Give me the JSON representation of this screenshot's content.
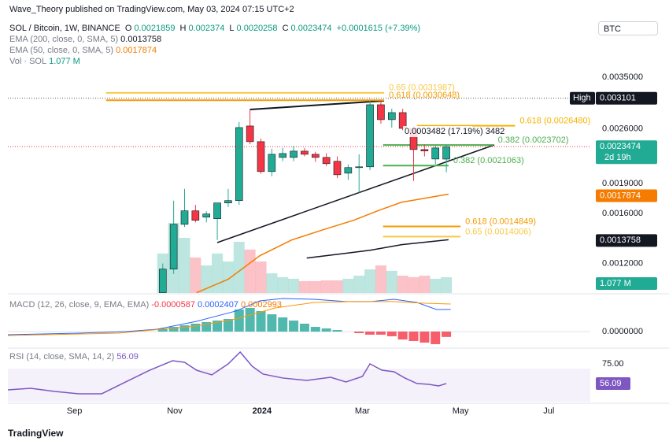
{
  "header": {
    "published": "Wave_Theory published on TradingView.com, May 03, 2024 07:15 UTC+2",
    "ohlc_labels": [
      "O",
      "H",
      "L",
      "C"
    ],
    "change": "+0.0001615 (+7.39%)",
    "currency": "BTC",
    "countdown": "2d 19h",
    "high_label": "High",
    "footer": "TradingView"
  },
  "chart_data": [
    {
      "type": "candlestick",
      "title": "SOL / Bitcoin, 1W, BINANCE",
      "log_scale": true,
      "grid": false,
      "xlim": [
        -14.2,
        39.2
      ],
      "xticks": [
        {
          "value": -8.1,
          "label": "Sep"
        },
        {
          "value": 1.1,
          "label": "Nov"
        },
        {
          "value": 9.1,
          "label": "2024"
        },
        {
          "value": 18.3,
          "label": "Mar"
        },
        {
          "value": 27.3,
          "label": "May"
        },
        {
          "value": 35.4,
          "label": "Jul"
        }
      ],
      "ylim": [
        0.001013,
        0.00521
      ],
      "yticks": [
        {
          "value": 0.0012,
          "label": "0.0012000"
        },
        {
          "value": 0.0016,
          "label": "0.0016000"
        },
        {
          "value": 0.0019,
          "label": "0.0019000"
        },
        {
          "value": 0.0026,
          "label": "0.0026000"
        },
        {
          "value": 0.0035,
          "label": "0.0035000"
        }
      ],
      "up_color": "#22ab94",
      "down_color": "#f23645",
      "categories": [
        null,
        null,
        null,
        null,
        null,
        null,
        null,
        null,
        null,
        null,
        null,
        null,
        null,
        null,
        null,
        null,
        null,
        null,
        null,
        null,
        null,
        null,
        null,
        null,
        null,
        null,
        null
      ],
      "open": [
        0.001015,
        0.001162,
        0.001503,
        0.001624,
        0.001566,
        0.001552,
        0.001699,
        0.001722,
        0.002644,
        0.002416,
        0.002035,
        0.002207,
        0.002207,
        0.002288,
        0.002247,
        0.002207,
        0.002158,
        0.002016,
        0.002082,
        0.002091,
        0.002987,
        0.002742,
        0.002855,
        0.002608,
        0.002309,
        0.002187,
        0.0021859
      ],
      "high": [
        0.0012,
        0.001722,
        0.001842,
        0.00168,
        0.00162,
        0.001699,
        0.001842,
        0.002705,
        0.00292,
        0.00246,
        0.00232,
        0.00233,
        0.00236,
        0.00233,
        0.00228,
        0.00226,
        0.00222,
        0.00212,
        0.002247,
        0.003055,
        0.00306,
        0.00292,
        0.00292,
        0.00264,
        0.00238,
        0.00236,
        0.002374
      ],
      "low": [
        0.001015,
        0.00113,
        0.00148,
        0.00152,
        0.00152,
        0.001373,
        0.00166,
        0.00168,
        0.00238,
        0.00201,
        0.00198,
        0.00216,
        0.00216,
        0.00222,
        0.00215,
        0.0021,
        0.00196,
        0.00194,
        0.001801,
        0.00205,
        0.00268,
        0.00262,
        0.00258,
        0.001928,
        0.00222,
        0.00212,
        0.0020258
      ],
      "close": [
        0.001162,
        0.001503,
        0.001624,
        0.001538,
        0.001595,
        0.001699,
        0.001722,
        0.00262,
        0.002416,
        0.002035,
        0.002247,
        0.002257,
        0.002288,
        0.002247,
        0.002207,
        0.002129,
        0.001998,
        0.002082,
        0.002091,
        0.002987,
        0.002742,
        0.002855,
        0.002608,
        0.002309,
        0.00229,
        0.00233,
        0.0023474
      ],
      "series": [
        {
          "name": "EMA (200, close, 0, SMA, 5)",
          "color": "#131722",
          "x": [
            13.2,
            16.1,
            19.0,
            21.9,
            26.2
          ],
          "values": [
            0.001238,
            0.001266,
            0.001295,
            0.001337,
            0.0013758
          ]
        },
        {
          "name": "EMA (50, close, 0, SMA, 5)",
          "color": "#f57c00",
          "x": [
            3.1,
            6.0,
            8.9,
            11.8,
            14.7,
            17.5,
            19.7,
            21.9,
            24.0,
            26.2
          ],
          "values": [
            0.001015,
            0.001096,
            0.001255,
            0.001373,
            0.001457,
            0.001538,
            0.001624,
            0.001706,
            0.001745,
            0.0017874
          ]
        }
      ],
      "volume": {
        "name": "Vol · SOL",
        "ylim": [
          0,
          8
        ],
        "values": [
          2.69,
          4.78,
          3.76,
          2.42,
          1.88,
          2.69,
          2.15,
          3.49,
          2.96,
          2.15,
          1.34,
          1.08,
          0.97,
          0.81,
          0.81,
          0.86,
          0.86,
          0.97,
          1.18,
          1.61,
          1.88,
          1.51,
          1.18,
          1.08,
          1.18,
          0.97,
          1.077
        ],
        "value_label": "1.077 M"
      },
      "levels": [
        {
          "label": "0.65 (0.0031987)",
          "value": 0.0031987,
          "color": "#f7c948",
          "x": [
            -5.2,
            20.3
          ]
        },
        {
          "label": "0.618 (0.0030648)",
          "value": 0.0030648,
          "color": "#f59c00",
          "x": [
            -5.2,
            20.3
          ]
        },
        {
          "label": "0.618 (0.0026480)",
          "value": 0.002648,
          "color": "#f5b400",
          "x": [
            23.3,
            32.3
          ]
        },
        {
          "label": "0.382 (0.0023702)",
          "value": 0.0023702,
          "color": "#4caf50",
          "x": [
            20.2,
            30.3
          ]
        },
        {
          "label": "0.382 (0.0021063)",
          "value": 0.0021063,
          "color": "#4caf50",
          "x": [
            20.2,
            26.2
          ]
        },
        {
          "label": "0.618 (0.0014849)",
          "value": 0.0014849,
          "color": "#f59c00",
          "x": [
            20.2,
            27.3
          ]
        },
        {
          "label": "0.65 (0.0014006)",
          "value": 0.0014006,
          "color": "#f7c948",
          "x": [
            20.2,
            27.3
          ]
        }
      ],
      "high_marker": 0.003101,
      "annotations": [
        {
          "text": "0.0003482 (17.19%) 3482"
        }
      ]
    },
    {
      "type": "macd",
      "title": "MACD (12, 26, close, 9, EMA, EMA)",
      "xlim": [
        -14.2,
        39.2
      ],
      "ylim": [
        -0.000163,
        0.000394
      ],
      "yticks": [
        {
          "value": 0,
          "label": "0.0000000"
        }
      ],
      "up_color": "#26a69a",
      "down_color": "#f23645",
      "histogram": {
        "x": [
          0,
          1,
          2,
          3,
          4,
          5,
          6,
          7,
          8,
          9,
          10,
          11,
          12,
          13,
          14,
          15,
          16,
          17,
          18,
          19,
          20,
          21,
          22,
          23,
          24,
          25,
          26
        ],
        "values": [
          3.4e-05,
          5.1e-05,
          6.8e-05,
          8.6e-05,
          0.000103,
          0.00012,
          0.000137,
          0.00024,
          0.000257,
          0.000223,
          0.000188,
          0.000154,
          0.00012,
          8.6e-05,
          5.1e-05,
          3.4e-05,
          1.7e-05,
          0,
          -1.7e-05,
          -3.4e-05,
          -3.4e-05,
          -5.1e-05,
          -8.6e-05,
          -0.000103,
          -0.00012,
          -0.000137,
          -5.87e-05
        ]
      },
      "series": [
        {
          "color": "#2962ff",
          "x": [
            -14.2,
            -7.7,
            -3.4,
            -0.5,
            3.1,
            6.7,
            8.9,
            11.0,
            13.9,
            16.8,
            19.0,
            21.2,
            23.3,
            25.1,
            26.4
          ],
          "values": [
            -3.4e-05,
            -1.7e-05,
            0,
            2.6e-05,
            0.000111,
            0.000223,
            0.000334,
            0.00036,
            0.000351,
            0.000326,
            0.000326,
            0.000351,
            0.000317,
            0.00024,
            0.0002407
          ]
        },
        {
          "color": "#ff9800",
          "x": [
            -14.2,
            -4.1,
            3.1,
            6.7,
            10.3,
            13.9,
            17.5,
            21.2,
            24.0,
            26.4
          ],
          "values": [
            -4.3e-05,
            -1.7e-05,
            6e-05,
            0.000137,
            0.000257,
            0.000317,
            0.000326,
            0.000326,
            0.000308,
            0.0002993
          ]
        }
      ]
    },
    {
      "type": "rsi",
      "title": "RSI (14, close, SMA, 14, 2)",
      "xlim": [
        -14.2,
        39.2
      ],
      "ylim": [
        38.6,
        87.9
      ],
      "yticks": [
        {
          "value": 75,
          "label": "75.00"
        }
      ],
      "series": [
        {
          "color": "#7e57c2",
          "x": [
            -14.2,
            -12.1,
            -9.9,
            -7.7,
            -5.6,
            -3.4,
            -1.2,
            0.9,
            2.0,
            3.1,
            4.5,
            6.0,
            7.1,
            8.2,
            9.2,
            11.0,
            13.2,
            15.4,
            16.8,
            18.3,
            19.0,
            20.1,
            21.2,
            22.2,
            23.3,
            24.4,
            25.3,
            26.0
          ],
          "values": [
            50.0,
            51.5,
            48.5,
            46.2,
            46.2,
            57.6,
            68.9,
            78.0,
            76.5,
            68.9,
            64.4,
            75.0,
            86.4,
            72.7,
            65.2,
            61.4,
            59.1,
            62.1,
            57.6,
            62.9,
            75.0,
            68.9,
            67.4,
            61.4,
            56.1,
            55.3,
            53.8,
            56.09
          ]
        }
      ]
    }
  ]
}
